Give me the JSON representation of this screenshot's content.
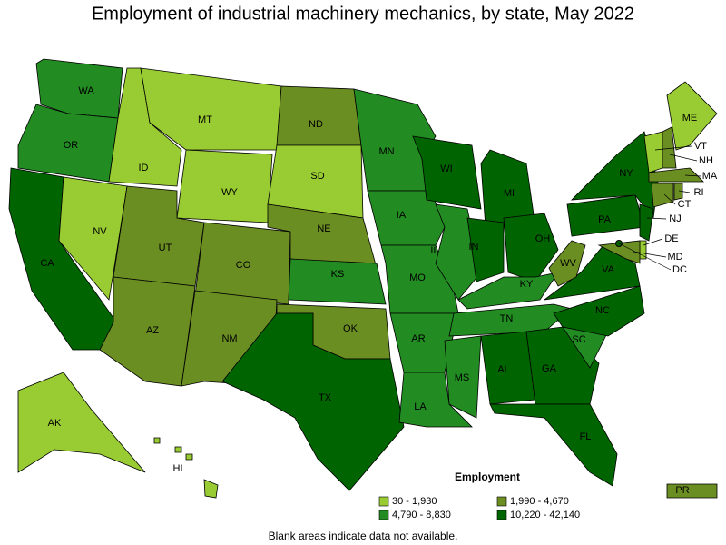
{
  "title": "Employment of industrial machinery mechanics, by state, May 2022",
  "states": [
    {
      "label": "WA",
      "color": "#228b22"
    },
    {
      "label": "OR",
      "color": "#228b22"
    },
    {
      "label": "CA",
      "color": "#006400"
    },
    {
      "label": "NV",
      "color": "#99cc33"
    },
    {
      "label": "ID",
      "color": "#99cc33"
    },
    {
      "label": "MT",
      "color": "#99cc33"
    },
    {
      "label": "WY",
      "color": "#99cc33"
    },
    {
      "label": "UT",
      "color": "#6b8e23"
    },
    {
      "label": "CO",
      "color": "#6b8e23"
    },
    {
      "label": "AZ",
      "color": "#6b8e23"
    },
    {
      "label": "NM",
      "color": "#6b8e23"
    },
    {
      "label": "ND",
      "color": "#6b8e23"
    },
    {
      "label": "SD",
      "color": "#99cc33"
    },
    {
      "label": "NE",
      "color": "#6b8e23"
    },
    {
      "label": "KS",
      "color": "#228b22"
    },
    {
      "label": "OK",
      "color": "#6b8e23"
    },
    {
      "label": "TX",
      "color": "#006400"
    },
    {
      "label": "MN",
      "color": "#228b22"
    },
    {
      "label": "IA",
      "color": "#228b22"
    },
    {
      "label": "MO",
      "color": "#228b22"
    },
    {
      "label": "AR",
      "color": "#228b22"
    },
    {
      "label": "LA",
      "color": "#228b22"
    },
    {
      "label": "WI",
      "color": "#006400"
    },
    {
      "label": "IL",
      "color": "#228b22"
    },
    {
      "label": "MI",
      "color": "#006400"
    },
    {
      "label": "IN",
      "color": "#006400"
    },
    {
      "label": "OH",
      "color": "#006400"
    },
    {
      "label": "KY",
      "color": "#228b22"
    },
    {
      "label": "TN",
      "color": "#228b22"
    },
    {
      "label": "MS",
      "color": "#228b22"
    },
    {
      "label": "AL",
      "color": "#006400"
    },
    {
      "label": "GA",
      "color": "#006400"
    },
    {
      "label": "FL",
      "color": "#006400"
    },
    {
      "label": "SC",
      "color": "#228b22"
    },
    {
      "label": "NC",
      "color": "#006400"
    },
    {
      "label": "VA",
      "color": "#006400"
    },
    {
      "label": "WV",
      "color": "#6b8e23"
    },
    {
      "label": "PA",
      "color": "#006400"
    },
    {
      "label": "NY",
      "color": "#006400"
    },
    {
      "label": "ME",
      "color": "#99cc33"
    },
    {
      "label": "VT",
      "color": "#99cc33"
    },
    {
      "label": "NH",
      "color": "#6b8e23"
    },
    {
      "label": "MA",
      "color": "#6b8e23"
    },
    {
      "label": "CT",
      "color": "#6b8e23"
    },
    {
      "label": "RI",
      "color": "#6b8e23"
    },
    {
      "label": "NJ",
      "color": "#006400"
    },
    {
      "label": "DE",
      "color": "#99cc33"
    },
    {
      "label": "MD",
      "color": "#6b8e23"
    },
    {
      "label": "DC",
      "color": "#006400"
    },
    {
      "label": "AK",
      "color": "#99cc33"
    },
    {
      "label": "HI",
      "color": "#99cc33"
    },
    {
      "label": "PR",
      "color": "#6b8e23"
    }
  ],
  "legend": {
    "title": "Employment",
    "items": [
      {
        "label": "30 - 1,930",
        "color": "#99cc33"
      },
      {
        "label": "1,990 - 4,670",
        "color": "#6b8e23"
      },
      {
        "label": "4,790 - 8,830",
        "color": "#228b22"
      },
      {
        "label": "10,220 - 42,140",
        "color": "#006400"
      }
    ]
  },
  "note": "Blank areas indicate data not available."
}
